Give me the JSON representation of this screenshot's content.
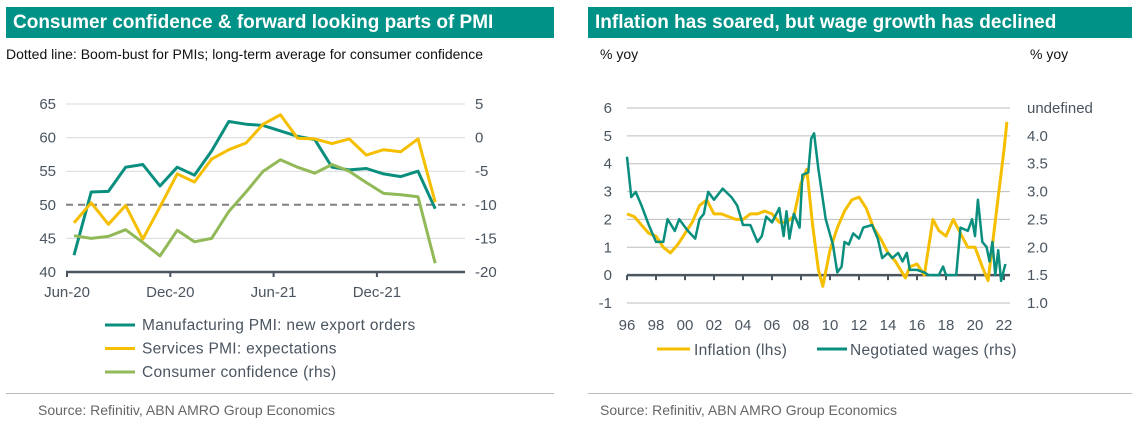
{
  "left": {
    "title": "Consumer confidence & forward looking parts of PMI",
    "subtitle": "Dotted line: Boom-bust for PMIs; long-term average for consumer confidence",
    "source": "Source: Refinitiv, ABN AMRO Group Economics"
  },
  "right": {
    "title": "Inflation has soared, but wage growth has declined",
    "lhs_unit": "% yoy",
    "rhs_unit": "% yoy",
    "source": "Source: Refinitiv, ABN AMRO Group Economics"
  },
  "colors": {
    "header": "#009286",
    "teal": "#0a8f7e",
    "yellow": "#f5bf00",
    "green": "#92b957",
    "dashed": "#808080"
  },
  "chart_data": [
    {
      "type": "line",
      "title": "Consumer confidence & forward looking parts of PMI",
      "x_ticks": [
        "Jun-20",
        "Dec-20",
        "Jun-21",
        "Dec-21"
      ],
      "x": [
        "2020-06",
        "2020-07",
        "2020-08",
        "2020-09",
        "2020-10",
        "2020-11",
        "2020-12",
        "2021-01",
        "2021-02",
        "2021-03",
        "2021-04",
        "2021-05",
        "2021-06",
        "2021-07",
        "2021-08",
        "2021-09",
        "2021-10",
        "2021-11",
        "2021-12",
        "2022-01",
        "2022-02",
        "2022-03"
      ],
      "ylim": [
        40,
        65
      ],
      "y_ticks": [
        40,
        45,
        50,
        55,
        60,
        65
      ],
      "y2lim": [
        -20,
        5
      ],
      "y2_ticks": [
        -20,
        -15,
        -10,
        -5,
        0,
        5
      ],
      "reference_line": {
        "axis": "lhs",
        "value": 50,
        "style": "dashed"
      },
      "grid": true,
      "legend": "bottom",
      "series": [
        {
          "name": "Manufacturing PMI: new export orders",
          "axis": "lhs",
          "color": "#0a8f7e",
          "values": [
            42.5,
            51.9,
            52.0,
            55.6,
            56.0,
            52.8,
            55.6,
            54.4,
            58.0,
            62.4,
            62.0,
            61.8,
            61.0,
            60.2,
            59.7,
            55.6,
            55.2,
            55.4,
            54.6,
            54.2,
            55.0,
            49.4
          ]
        },
        {
          "name": "Services PMI: expectations",
          "axis": "lhs",
          "color": "#f5bf00",
          "values": [
            47.3,
            50.3,
            47.1,
            49.9,
            44.9,
            49.7,
            54.6,
            53.4,
            56.8,
            58.2,
            59.2,
            62.0,
            63.4,
            59.9,
            59.8,
            59.1,
            59.8,
            57.4,
            58.2,
            57.9,
            59.8,
            50.4
          ]
        },
        {
          "name": "Consumer confidence (rhs)",
          "axis": "rhs",
          "color": "#92b957",
          "values": [
            -14.6,
            -15.0,
            -14.7,
            -13.7,
            -15.6,
            -17.6,
            -13.8,
            -15.5,
            -15.0,
            -11.0,
            -8.1,
            -5.0,
            -3.3,
            -4.4,
            -5.3,
            -4.0,
            -5.0,
            -6.7,
            -8.3,
            -8.5,
            -8.8,
            -18.7
          ]
        }
      ]
    },
    {
      "type": "line",
      "title": "Inflation has soared, but wage growth has declined",
      "x_ticks": [
        "96",
        "98",
        "00",
        "02",
        "04",
        "06",
        "08",
        "10",
        "12",
        "14",
        "16",
        "18",
        "20",
        "22"
      ],
      "ylabel": "% yoy",
      "y2label": "% yoy",
      "ylim": [
        -1,
        6
      ],
      "y_ticks": [
        -1,
        0,
        1,
        2,
        3,
        4,
        5,
        6
      ],
      "y2lim": [
        1.0,
        4.0
      ],
      "y2_ticks": [
        "1.0",
        "1.5",
        "2.0",
        "2.5",
        "3.0",
        "3.5",
        "4.0"
      ],
      "grid": true,
      "legend": "bottom",
      "series": [
        {
          "name": "Inflation (lhs)",
          "axis": "lhs",
          "color": "#f5bf00",
          "x": [
            1996,
            1996.5,
            1997,
            1997.5,
            1998,
            1998.5,
            1999,
            1999.5,
            2000,
            2000.5,
            2001,
            2001.5,
            2002,
            2002.5,
            2003,
            2003.5,
            2004,
            2004.5,
            2005,
            2005.5,
            2006,
            2006.5,
            2007,
            2007.5,
            2008,
            2008.4,
            2008.8,
            2009.2,
            2009.5,
            2010,
            2010.5,
            2011,
            2011.5,
            2012,
            2012.5,
            2013,
            2013.5,
            2014,
            2014.5,
            2015.2,
            2015.5,
            2016,
            2016.5,
            2017.1,
            2017.5,
            2018,
            2018.5,
            2019,
            2019.5,
            2020,
            2020.5,
            2020.9,
            2021.3,
            2021.6,
            2022,
            2022.2
          ],
          "values": [
            2.2,
            2.1,
            1.8,
            1.5,
            1.4,
            1.0,
            0.8,
            1.1,
            1.5,
            1.9,
            2.5,
            2.7,
            2.2,
            2.2,
            2.1,
            2.0,
            2.0,
            2.2,
            2.2,
            2.3,
            2.2,
            1.9,
            1.9,
            2.1,
            3.3,
            3.8,
            1.8,
            0.2,
            -0.4,
            0.9,
            1.7,
            2.3,
            2.7,
            2.8,
            2.4,
            1.7,
            1.3,
            0.8,
            0.5,
            -0.1,
            0.3,
            0.4,
            0.0,
            2.0,
            1.6,
            1.4,
            2.0,
            1.5,
            1.0,
            1.0,
            0.3,
            -0.2,
            1.5,
            2.8,
            4.5,
            5.5
          ]
        },
        {
          "name": "Negotiated wages (rhs)",
          "axis": "rhs",
          "color": "#0a8f7e",
          "x": [
            1996,
            1996.3,
            1996.6,
            1997,
            1997.5,
            1998,
            1998.5,
            1998.8,
            1999.3,
            1999.6,
            2000.2,
            2000.7,
            2001,
            2001.3,
            2001.6,
            2002,
            2002.6,
            2003.2,
            2003.6,
            2004,
            2004.5,
            2005,
            2005.3,
            2005.6,
            2006,
            2006.5,
            2006.8,
            2007,
            2007.2,
            2007.5,
            2007.9,
            2008.1,
            2008.5,
            2008.7,
            2008.9,
            2009.2,
            2009.7,
            2010.2,
            2010.5,
            2010.8,
            2011,
            2011.3,
            2011.6,
            2012,
            2012.3,
            2012.9,
            2013.3,
            2013.6,
            2014,
            2014.3,
            2014.7,
            2015,
            2015.3,
            2015.5,
            2016,
            2016.5,
            2016.8,
            2017.5,
            2017.8,
            2018,
            2018.7,
            2019,
            2019.5,
            2019.8,
            2020,
            2020.2,
            2020.5,
            2020.8,
            2021,
            2021.2,
            2021.4,
            2021.6,
            2021.8,
            2022.1
          ],
          "values": [
            3.25,
            2.63,
            2.71,
            2.5,
            2.2,
            1.94,
            1.94,
            2.29,
            2.11,
            2.29,
            2.11,
            1.99,
            2.29,
            2.37,
            2.71,
            2.59,
            2.76,
            2.63,
            2.5,
            2.2,
            2.2,
            1.94,
            2.03,
            2.33,
            2.24,
            2.46,
            2.03,
            2.41,
            1.99,
            2.37,
            2.16,
            2.97,
            3.01,
            3.53,
            3.61,
            3.06,
            2.29,
            1.9,
            1.47,
            1.56,
            1.94,
            1.9,
            2.07,
            1.99,
            2.16,
            2.2,
            1.99,
            1.69,
            1.77,
            1.69,
            1.77,
            1.64,
            1.77,
            1.51,
            1.51,
            1.47,
            1.43,
            1.43,
            1.56,
            1.43,
            1.43,
            2.16,
            2.11,
            2.29,
            2.03,
            2.59,
            1.94,
            1.86,
            1.64,
            1.94,
            1.43,
            1.81,
            1.34,
            1.6
          ]
        }
      ]
    }
  ]
}
